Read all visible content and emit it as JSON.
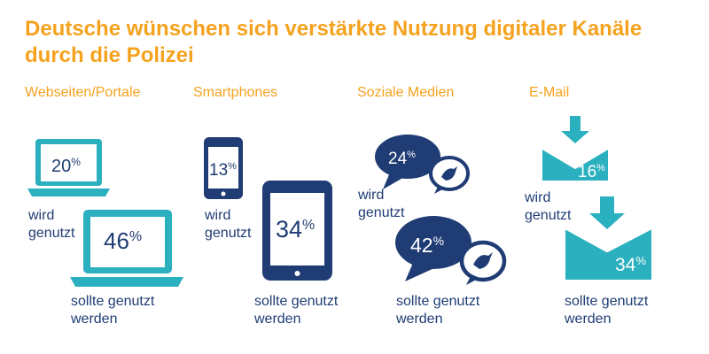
{
  "title": "Deutsche wünschen sich verstärkte Nutzung digitaler Kanäle durch die Polizei",
  "colors": {
    "orange": "#f5a21f",
    "teal": "#2ab0be",
    "navy": "#1f3c74",
    "white": "#ffffff"
  },
  "chart_data": {
    "type": "infographic-comparison",
    "title": "Deutsche wünschen sich verstärkte Nutzung digitaler Kanäle durch die Polizei",
    "categories": [
      "Webseiten/Portale",
      "Smartphones",
      "Soziale Medien",
      "E-Mail"
    ],
    "series": [
      {
        "name": "wird genutzt",
        "values": [
          20,
          13,
          24,
          16
        ]
      },
      {
        "name": "sollte genutzt werden",
        "values": [
          46,
          34,
          42,
          34
        ]
      }
    ],
    "unit": "%",
    "icons": [
      "laptop-icon",
      "smartphone-icon",
      "speech-bubble-bird-icon",
      "envelope-download-icon"
    ]
  },
  "labels": {
    "current": [
      "wird",
      "genutzt"
    ],
    "desired": [
      "sollte genutzt",
      "werden"
    ],
    "percent_sign": "%"
  }
}
